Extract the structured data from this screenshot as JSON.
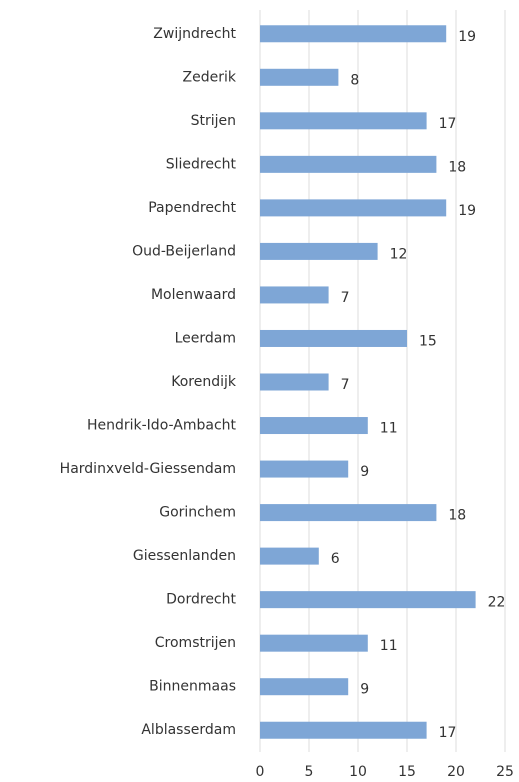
{
  "chart_data": {
    "type": "bar",
    "orientation": "horizontal",
    "categories": [
      "Zwijndrecht",
      "Zederik",
      "Strijen",
      "Sliedrecht",
      "Papendrecht",
      "Oud-Beijerland",
      "Molenwaard",
      "Leerdam",
      "Korendijk",
      "Hendrik-Ido-Ambacht",
      "Hardinxveld-Giessendam",
      "Gorinchem",
      "Giessenlanden",
      "Dordrecht",
      "Cromstrijen",
      "Binnenmaas",
      "Alblasserdam"
    ],
    "values": [
      19,
      8,
      17,
      18,
      19,
      12,
      7,
      15,
      7,
      11,
      9,
      18,
      6,
      22,
      11,
      9,
      17
    ],
    "color": "#7ea6d6",
    "xlim": [
      0,
      25
    ],
    "xticks": [
      0,
      5,
      10,
      15,
      20,
      25
    ],
    "grid": true
  }
}
